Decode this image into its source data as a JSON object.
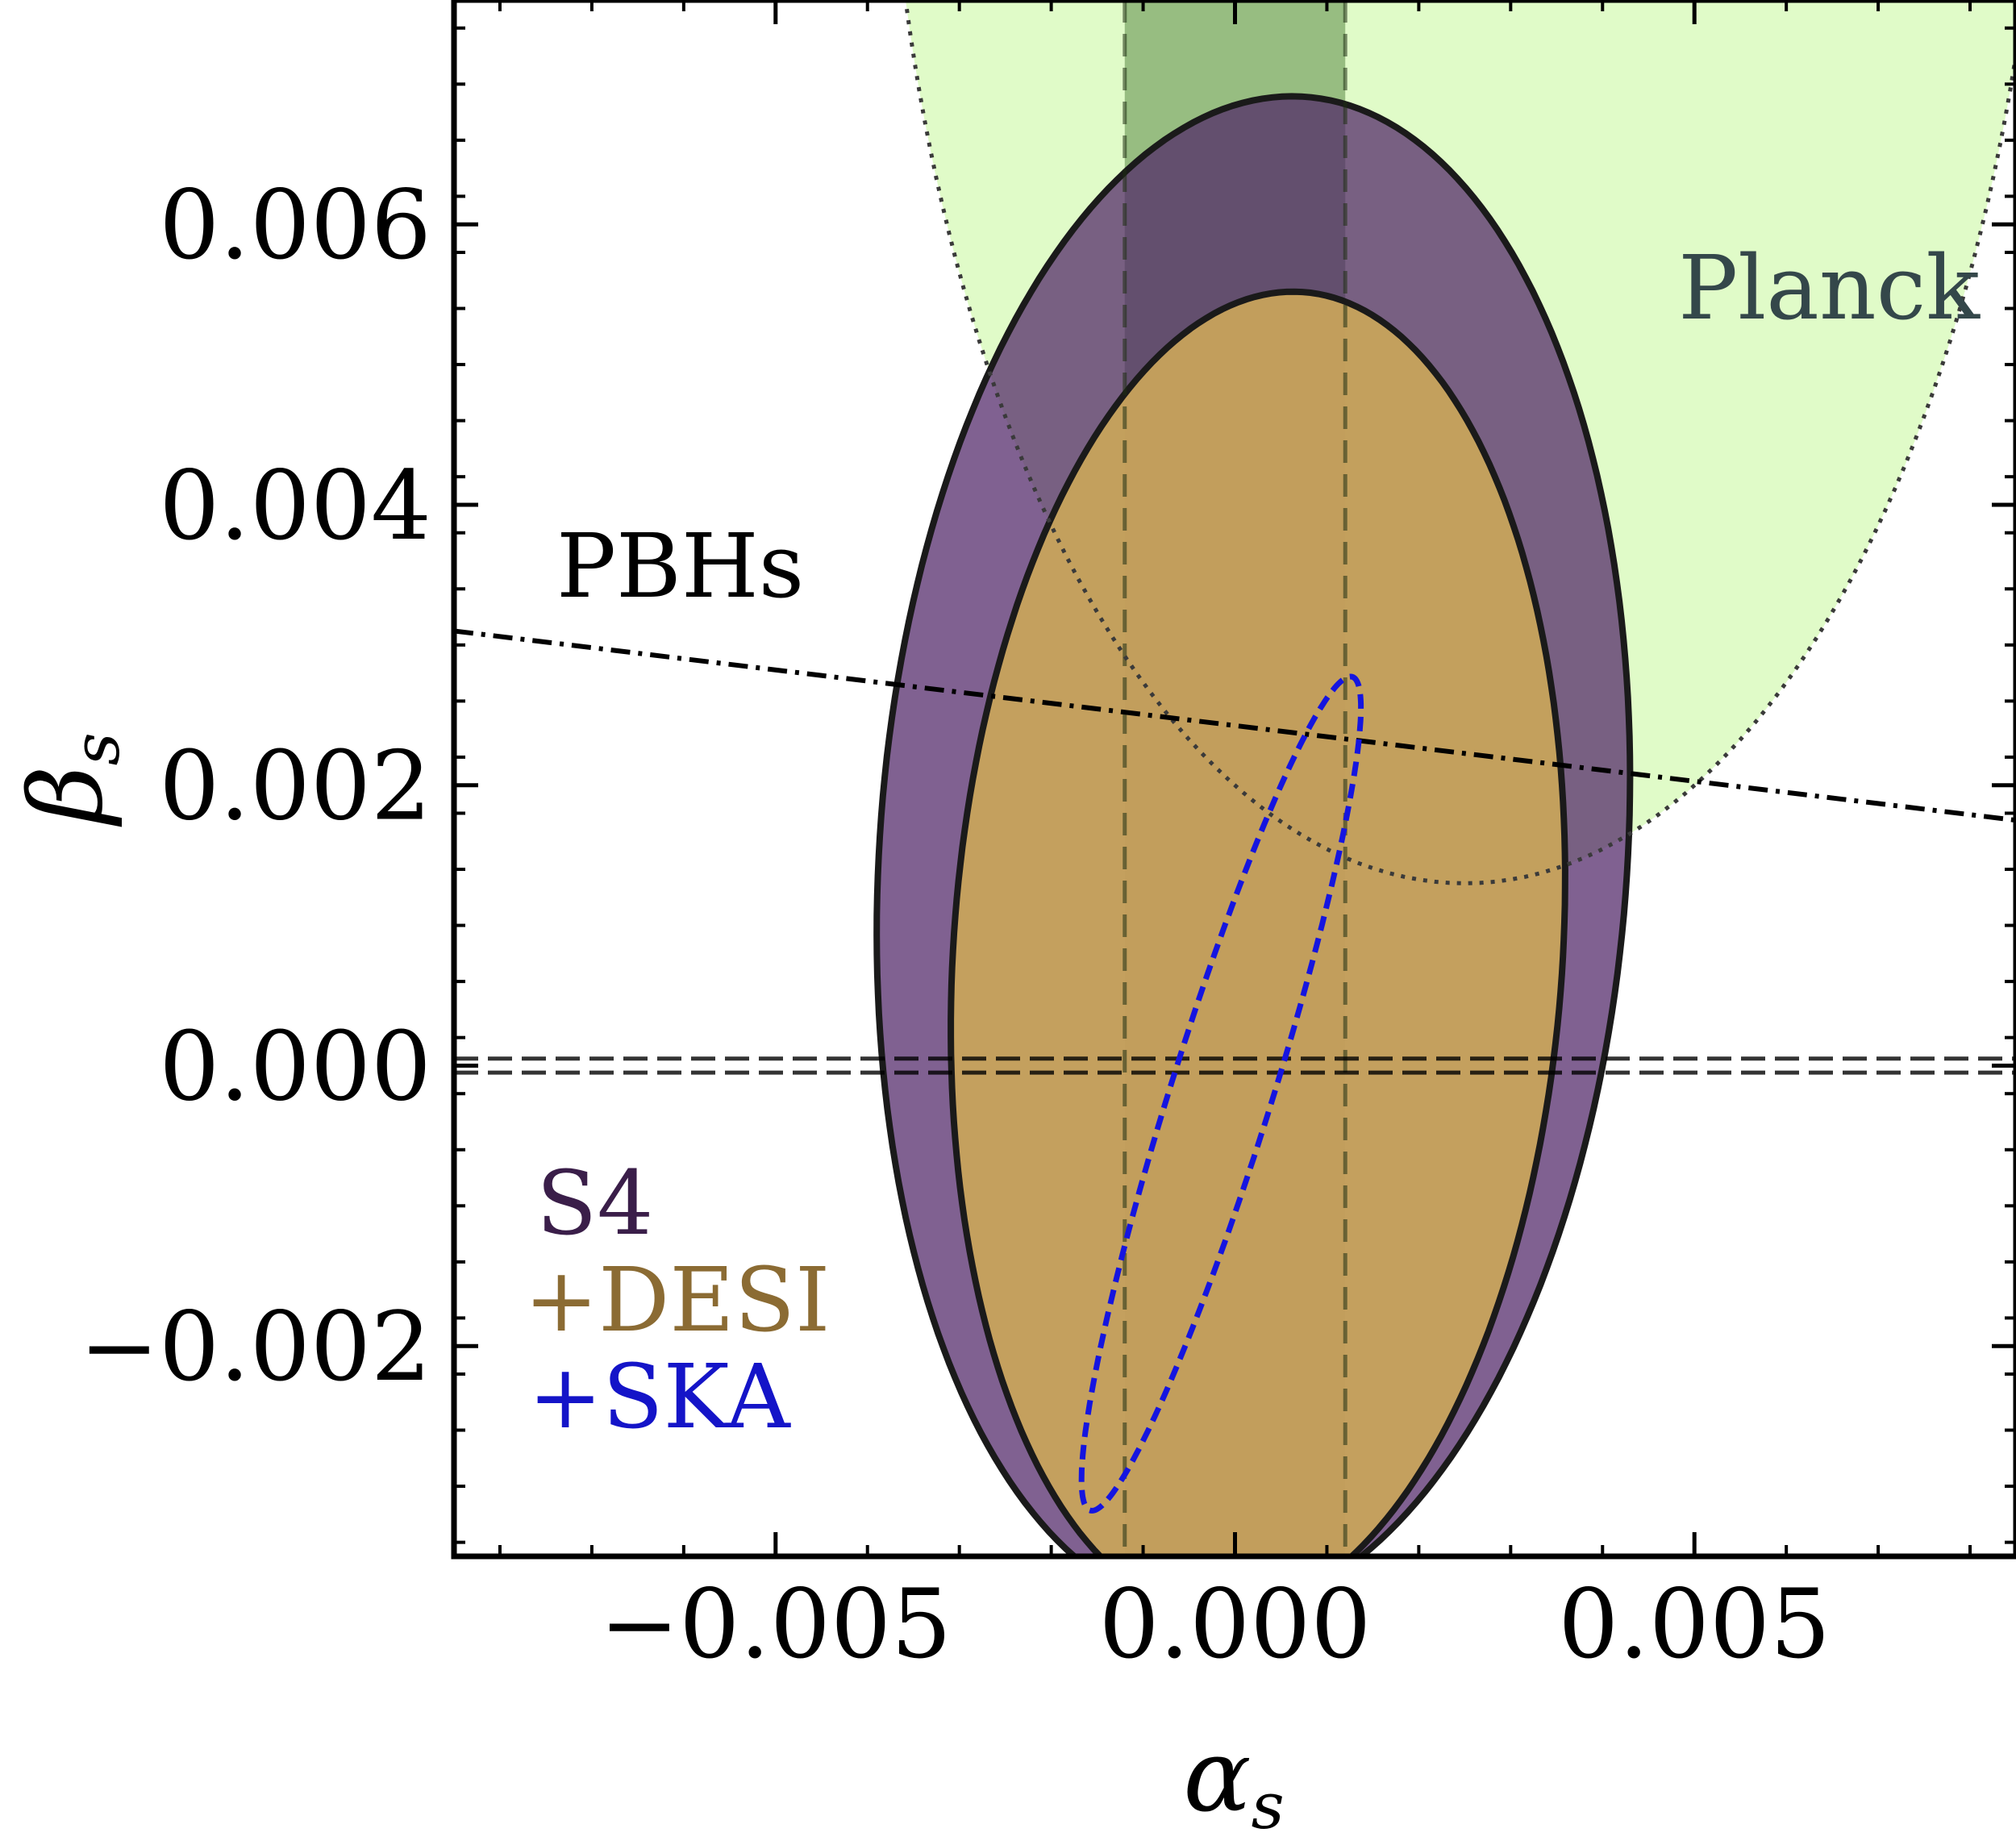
{
  "chart_data": {
    "type": "contour",
    "xlabel": "α",
    "xlabel_sub": "s",
    "ylabel": "β",
    "ylabel_sub": "s",
    "xlim": [
      -0.0085,
      0.0085
    ],
    "ylim": [
      -0.0035,
      0.0076
    ],
    "x_ticks": [
      {
        "value": -0.005,
        "label": "−0.005"
      },
      {
        "value": 0.0,
        "label": "0.000"
      },
      {
        "value": 0.005,
        "label": "0.005"
      }
    ],
    "y_ticks": [
      {
        "value": 0.006,
        "label": "0.006"
      },
      {
        "value": 0.004,
        "label": "0.004"
      },
      {
        "value": 0.002,
        "label": "0.002"
      },
      {
        "value": 0.0,
        "label": "0.000"
      },
      {
        "value": -0.002,
        "label": "−0.002"
      }
    ],
    "regions": {
      "planck": {
        "label": "Planck",
        "center": [
          0.0025,
          0.0098
        ],
        "semi_axes": [
          0.0063,
          0.0085
        ],
        "angle_deg": 0,
        "fill": "#e0fbc8",
        "stroke": "#3a3a3a",
        "style": "dotted"
      },
      "planck_alpha_band": {
        "alpha_range": [
          -0.0012,
          0.0012
        ],
        "fill": "#7fa86a",
        "stroke": "#1e2e12",
        "style": "dashed"
      },
      "planck_beta_band": {
        "beta_range": [
          -5e-05,
          5e-05
        ],
        "stroke": "#000000",
        "style": "dashed"
      },
      "s4": {
        "label": "S4",
        "center": [
          0.0002,
          0.0015
        ],
        "semi_axes": [
          0.00405,
          0.00545
        ],
        "angle_deg": -10,
        "fill": "#4f2466",
        "stroke": "#1a1a1a",
        "color": "#3a1e49"
      },
      "s4_desi": {
        "label": "+DESI",
        "center": [
          0.00025,
          0.0008
        ],
        "semi_axes": [
          0.0033,
          0.00475
        ],
        "angle_deg": -9,
        "fill": "#c9a55a",
        "stroke": "#1a1a1a",
        "color": "#8b6b33"
      },
      "s4_desi_ska": {
        "label": "+SKA",
        "center": [
          -0.00015,
          -0.0002
        ],
        "semi_axes": [
          0.00052,
          0.0033
        ],
        "angle_deg": -26,
        "stroke": "#1515e0",
        "style": "dashed",
        "color": "#1414c8"
      }
    },
    "pbh_line": {
      "label": "PBHs",
      "points": [
        [
          -0.0085,
          0.0031
        ],
        [
          0.0085,
          0.00175
        ]
      ],
      "stroke": "#000000",
      "style": "dash-dot"
    }
  }
}
